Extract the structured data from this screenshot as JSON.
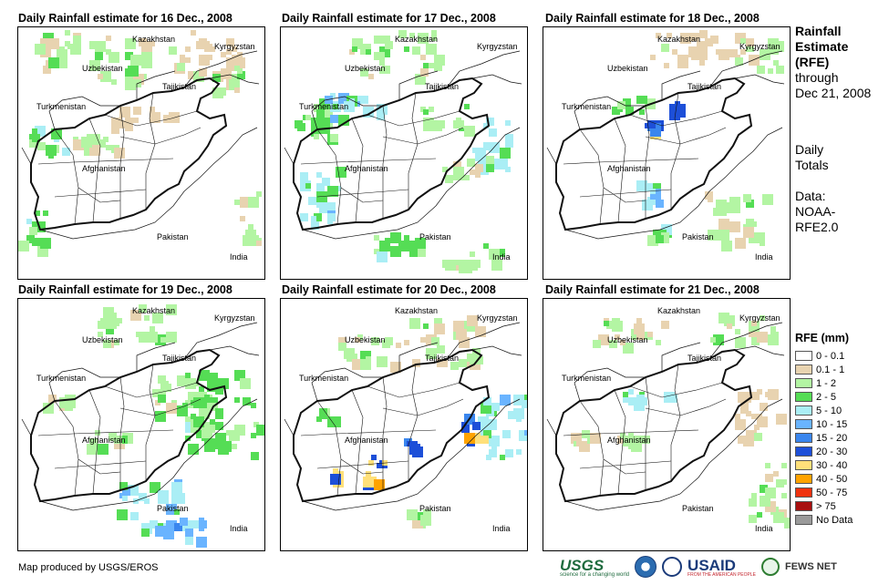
{
  "panels": [
    {
      "title": "Daily Rainfall estimate for 16 Dec., 2008",
      "blobs": [
        [
          0.18,
          0.08,
          0.25,
          0.14,
          2
        ],
        [
          0.45,
          0.12,
          0.3,
          0.18,
          2
        ],
        [
          0.75,
          0.1,
          0.3,
          0.18,
          1
        ],
        [
          0.12,
          0.45,
          0.15,
          0.12,
          3
        ],
        [
          0.3,
          0.45,
          0.2,
          0.1,
          2
        ],
        [
          0.5,
          0.35,
          0.25,
          0.08,
          1
        ],
        [
          0.05,
          0.8,
          0.1,
          0.15,
          3
        ],
        [
          0.92,
          0.75,
          0.1,
          0.2,
          2
        ],
        [
          0.85,
          0.2,
          0.15,
          0.1,
          2
        ]
      ]
    },
    {
      "title": "Daily Rainfall estimate for 17 Dec., 2008",
      "blobs": [
        [
          0.45,
          0.1,
          0.35,
          0.18,
          2
        ],
        [
          0.15,
          0.35,
          0.2,
          0.15,
          3
        ],
        [
          0.3,
          0.3,
          0.25,
          0.1,
          4
        ],
        [
          0.65,
          0.35,
          0.2,
          0.1,
          2
        ],
        [
          0.85,
          0.45,
          0.15,
          0.2,
          4
        ],
        [
          0.15,
          0.65,
          0.15,
          0.25,
          4
        ],
        [
          0.45,
          0.85,
          0.2,
          0.1,
          3
        ],
        [
          0.75,
          0.9,
          0.25,
          0.1,
          2
        ],
        [
          0.75,
          0.55,
          0.2,
          0.1,
          2
        ]
      ]
    },
    {
      "title": "Daily Rainfall estimate for 18 Dec., 2008",
      "blobs": [
        [
          0.6,
          0.08,
          0.35,
          0.14,
          1
        ],
        [
          0.85,
          0.1,
          0.2,
          0.12,
          2
        ],
        [
          0.42,
          0.38,
          0.06,
          0.06,
          7
        ],
        [
          0.52,
          0.3,
          0.05,
          0.05,
          7
        ],
        [
          0.35,
          0.3,
          0.15,
          0.05,
          3
        ],
        [
          0.78,
          0.75,
          0.25,
          0.2,
          2
        ],
        [
          0.42,
          0.65,
          0.1,
          0.08,
          4
        ],
        [
          0.45,
          0.8,
          0.08,
          0.08,
          3
        ]
      ]
    },
    {
      "title": "Daily Rainfall estimate for 19 Dec., 2008",
      "blobs": [
        [
          0.45,
          0.1,
          0.3,
          0.15,
          2
        ],
        [
          0.65,
          0.4,
          0.25,
          0.2,
          2
        ],
        [
          0.82,
          0.45,
          0.3,
          0.35,
          3
        ],
        [
          0.55,
          0.82,
          0.3,
          0.2,
          4
        ],
        [
          0.65,
          0.9,
          0.2,
          0.1,
          5
        ],
        [
          0.35,
          0.55,
          0.15,
          0.05,
          2
        ],
        [
          0.15,
          0.4,
          0.1,
          0.05,
          2
        ]
      ]
    },
    {
      "title": "Daily Rainfall estimate for 20 Dec., 2008",
      "blobs": [
        [
          0.35,
          0.2,
          0.25,
          0.12,
          2
        ],
        [
          0.65,
          0.15,
          0.3,
          0.2,
          2
        ],
        [
          0.9,
          0.5,
          0.2,
          0.25,
          4
        ],
        [
          0.78,
          0.54,
          0.1,
          0.04,
          8
        ],
        [
          0.75,
          0.48,
          0.05,
          0.05,
          7
        ],
        [
          0.52,
          0.58,
          0.06,
          0.06,
          7
        ],
        [
          0.38,
          0.64,
          0.08,
          0.04,
          8
        ],
        [
          0.35,
          0.7,
          0.05,
          0.05,
          8
        ],
        [
          0.22,
          0.7,
          0.05,
          0.05,
          8
        ],
        [
          0.15,
          0.45,
          0.1,
          0.05,
          3
        ],
        [
          0.55,
          0.85,
          0.1,
          0.05,
          2
        ]
      ]
    },
    {
      "title": "Daily Rainfall estimate for 21 Dec., 2008",
      "blobs": [
        [
          0.35,
          0.12,
          0.3,
          0.1,
          2
        ],
        [
          0.8,
          0.1,
          0.25,
          0.1,
          2
        ],
        [
          0.4,
          0.38,
          0.25,
          0.05,
          4
        ],
        [
          0.85,
          0.45,
          0.2,
          0.2,
          1
        ],
        [
          0.9,
          0.75,
          0.15,
          0.25,
          2
        ],
        [
          0.15,
          0.55,
          0.1,
          0.05,
          2
        ],
        [
          0.35,
          0.55,
          0.1,
          0.05,
          2
        ]
      ]
    }
  ],
  "map_labels": {
    "kazakhstan": "Kazakhstan",
    "kyrgyzstan": "Kyrgyzstan",
    "uzbekistan": "Uzbekistan",
    "tajikistan": "Tajikistan",
    "turkmenistan": "Turkmenistan",
    "afghanistan": "Afghanistan",
    "pakistan": "Pakistan",
    "india": "India"
  },
  "sidebar": {
    "title_lines": [
      "Rainfall",
      "Estimate",
      "(RFE)"
    ],
    "through_lines": [
      "through",
      "Dec 21, 2008"
    ],
    "daily_lines": [
      "Daily",
      "Totals"
    ],
    "data_lines": [
      "Data:",
      "NOAA-",
      "RFE2.0"
    ]
  },
  "legend": {
    "title": "RFE (mm)",
    "items": [
      {
        "label": "0 - 0.1",
        "color": "#ffffff"
      },
      {
        "label": "0.1 - 1",
        "color": "#e8d3b0"
      },
      {
        "label": "1 - 2",
        "color": "#b3f5a3"
      },
      {
        "label": "2 - 5",
        "color": "#55dd55"
      },
      {
        "label": "5 - 10",
        "color": "#aaeef5"
      },
      {
        "label": "10 - 15",
        "color": "#6ab4ff"
      },
      {
        "label": "15 - 20",
        "color": "#3a86ee"
      },
      {
        "label": "20 - 30",
        "color": "#1d4fd8"
      },
      {
        "label": "30 - 40",
        "color": "#ffe07a"
      },
      {
        "label": "40 - 50",
        "color": "#ffa300"
      },
      {
        "label": "50 - 75",
        "color": "#f0320f"
      },
      {
        "label": "> 75",
        "color": "#a81010"
      },
      {
        "label": "No Data",
        "color": "#9a9a9a"
      }
    ]
  },
  "credit": "Map produced by USGS/EROS",
  "logos": {
    "usgs": "USGS",
    "usgs_tagline": "science for a changing world",
    "usaid": "USAID",
    "usaid_tagline": "FROM THE AMERICAN PEOPLE",
    "fews": "FEWS NET"
  }
}
